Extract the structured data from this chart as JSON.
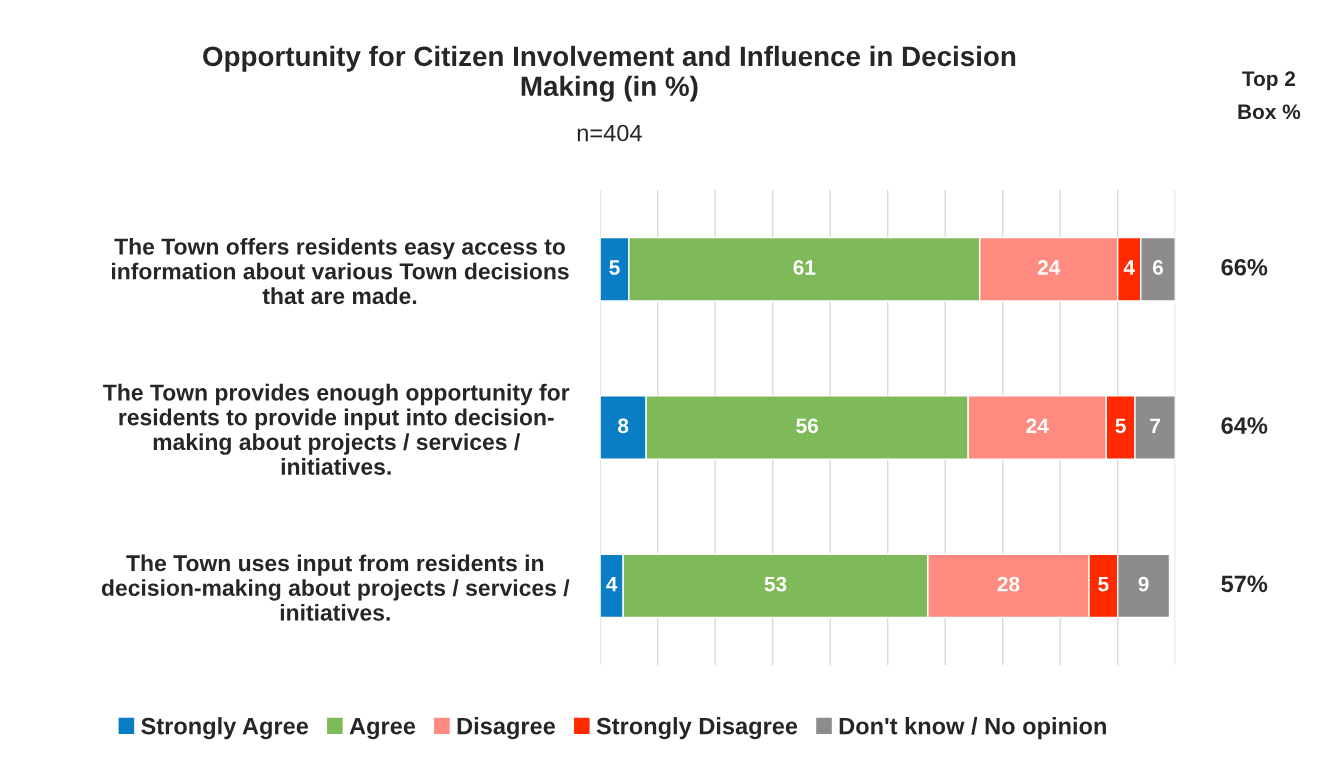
{
  "chart_data": {
    "type": "bar",
    "orientation": "horizontal",
    "stacked": true,
    "title": "Opportunity for Citizen Involvement and Influence in Decision\nMaking (in %)",
    "subtitle": "n=404",
    "categories": [
      "The Town offers residents easy access to\ninformation about various Town decisions\nthat are made.",
      "The Town provides enough opportunity for\nresidents to provide input into decision-\nmaking about projects / services /\ninitiatives.",
      "The Town uses input from residents in\ndecision-making about projects / services /\ninitiatives."
    ],
    "series": [
      {
        "name": "Strongly Agree",
        "color": "#0a7ec4",
        "values": [
          5,
          8,
          4
        ]
      },
      {
        "name": "Agree",
        "color": "#7fba5a",
        "values": [
          61,
          56,
          53
        ]
      },
      {
        "name": "Disagree",
        "color": "#ff8a80",
        "values": [
          24,
          24,
          28
        ]
      },
      {
        "name": "Strongly Disagree",
        "color": "#ff2a00",
        "values": [
          4,
          5,
          5
        ]
      },
      {
        "name": "Don't know / No opinion",
        "color": "#8c8c8c",
        "values": [
          6,
          7,
          9
        ]
      }
    ],
    "data_labels": true,
    "xlim": [
      0,
      100
    ],
    "xticks": [
      {
        "value": 0,
        "label": null
      },
      {
        "value": 10,
        "label": null
      },
      {
        "value": 20,
        "label": null
      },
      {
        "value": 30,
        "label": null
      },
      {
        "value": 40,
        "label": null
      },
      {
        "value": 50,
        "label": null
      },
      {
        "value": 60,
        "label": null
      },
      {
        "value": 70,
        "label": null
      },
      {
        "value": 80,
        "label": null
      },
      {
        "value": 90,
        "label": null
      },
      {
        "value": 100,
        "label": null
      }
    ],
    "grid": "x",
    "tick_labels": "y",
    "legend": "bottom",
    "annotations": [
      "Top 2\nBox %",
      "66%",
      "64%",
      "57%"
    ]
  }
}
